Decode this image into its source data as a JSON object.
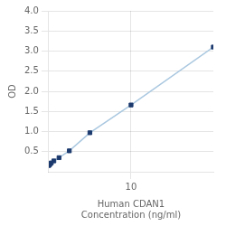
{
  "chart_data": {
    "type": "line",
    "x": [
      0,
      0.078,
      0.156,
      0.312,
      0.625,
      1.25,
      2.5,
      5,
      10,
      20
    ],
    "series": [
      {
        "type": "line",
        "color": "#aac8e0",
        "values": [
          0.155,
          0.17,
          0.195,
          0.22,
          0.27,
          0.35,
          0.52,
          0.97,
          1.66,
          3.1
        ]
      },
      {
        "type": "scatter",
        "color": "#1c3a6e",
        "marker": "square",
        "values": [
          0.155,
          0.17,
          0.195,
          0.22,
          0.27,
          0.35,
          0.52,
          0.97,
          1.66,
          3.1
        ]
      }
    ],
    "x_label": "Human CDAN1\nConcentration (ng/ml)",
    "y_label": "OD",
    "xlim": [
      0,
      20
    ],
    "ylim": [
      0,
      4.0
    ],
    "xticks": [
      10
    ],
    "yticks": [
      0.5,
      {
        "value": 1.0,
        "label": "1.0"
      },
      1.5,
      {
        "value": 2.0,
        "label": "2.0"
      },
      2.5,
      {
        "value": 3.0,
        "label": "3.0"
      },
      3.5,
      {
        "value": 4.0,
        "label": "4.0"
      }
    ],
    "grid": true
  }
}
